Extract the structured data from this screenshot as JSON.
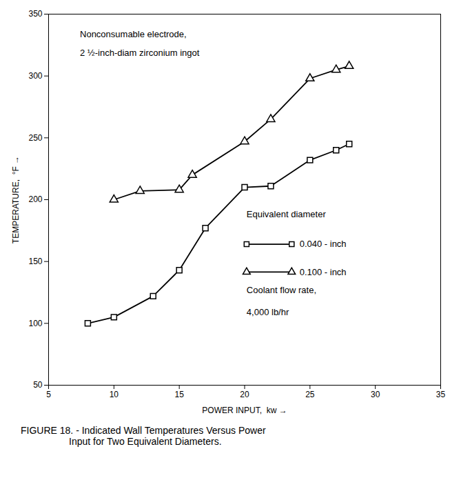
{
  "chart_data": {
    "type": "line",
    "xlabel": "POWER INPUT,  kw",
    "ylabel": "TEMPERATURE,  °F",
    "xlim": [
      5,
      35
    ],
    "ylim": [
      50,
      350
    ],
    "xticks": [
      5,
      10,
      15,
      20,
      25,
      30,
      35
    ],
    "yticks": [
      50,
      100,
      150,
      200,
      250,
      300,
      350
    ],
    "grid": false,
    "legend": "lower right",
    "legend_title": "Equivalent diameter",
    "series": [
      {
        "name": "0.040 - inch",
        "color": "#000000",
        "marker": "square",
        "x": [
          8,
          10,
          13,
          15,
          17,
          20,
          22,
          25,
          27,
          28
        ],
        "values": [
          100,
          105,
          122,
          143,
          177,
          210,
          211,
          232,
          240,
          245
        ]
      },
      {
        "name": "0.100 - inch",
        "color": "#000000",
        "marker": "triangle",
        "x": [
          10,
          12,
          15,
          16,
          20,
          22,
          25,
          27,
          28
        ],
        "values": [
          200,
          207,
          208,
          220,
          247,
          265,
          298,
          305,
          308
        ]
      }
    ],
    "annotations": [
      [
        "Nonconsumable electrode,",
        "2 ½-inch-diam zirconium ingot"
      ],
      [
        "Coolant flow rate,",
        "4,000 lb/hr"
      ]
    ],
    "caption": [
      "FIGURE 18. - Indicated Wall Temperatures Versus Power",
      "Input for Two Equivalent Diameters."
    ]
  }
}
